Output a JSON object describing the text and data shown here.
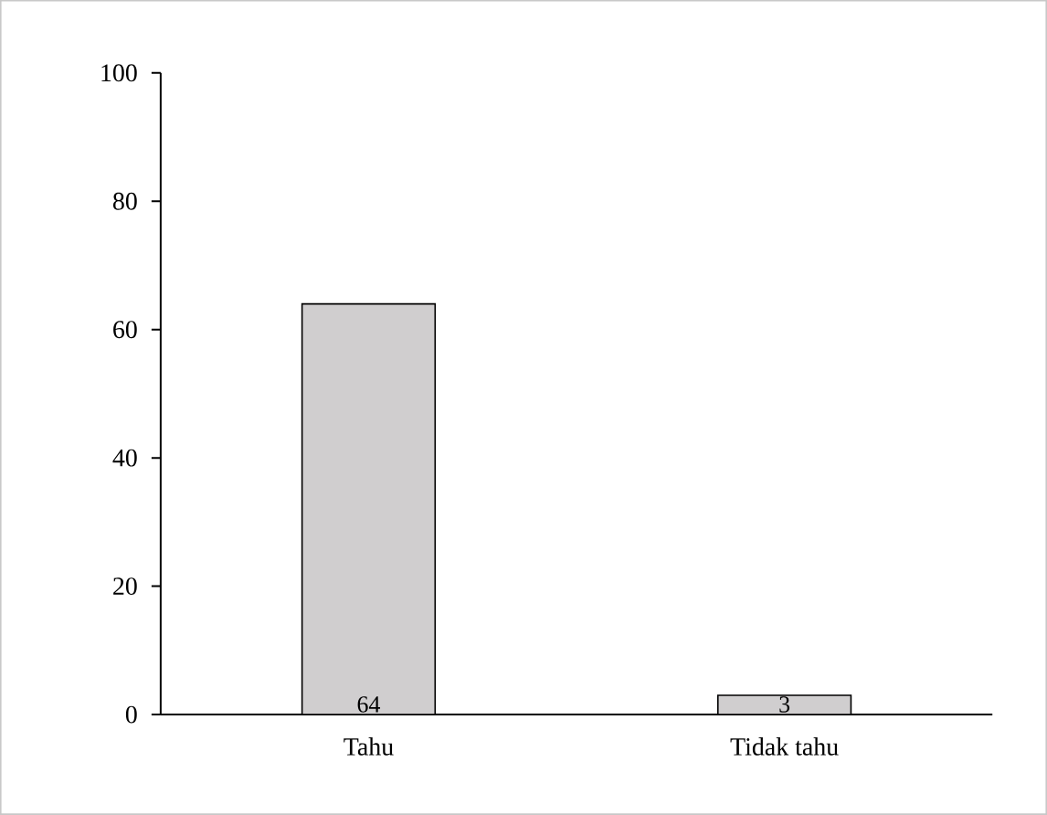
{
  "chart_data": {
    "type": "bar",
    "categories": [
      "Tahu",
      "Tidak tahu"
    ],
    "values": [
      64,
      3
    ],
    "color": "#d0cecf",
    "ylim": [
      0,
      100
    ],
    "yticks": [
      0,
      20,
      40,
      60,
      80,
      100
    ],
    "data_labels": true,
    "grid": false
  }
}
